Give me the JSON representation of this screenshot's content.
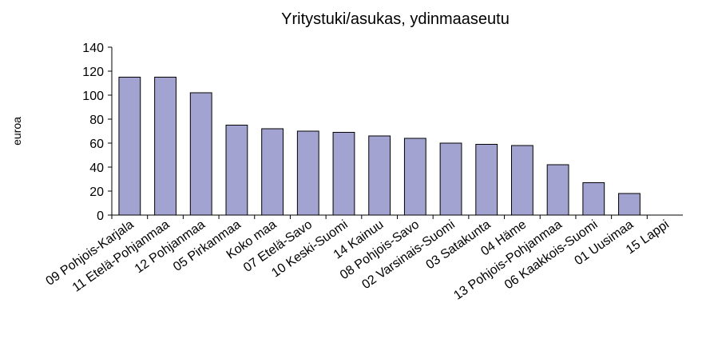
{
  "chart_data": {
    "type": "bar",
    "title": "Yritystuki/asukas, ydinmaaseutu",
    "y_label": "euroa",
    "categories": [
      "09 Pohjois-Karjala",
      "11 Etelä-Pohjanmaa",
      "12 Pohjanmaa",
      "05 Pirkanmaa",
      "Koko maa",
      "07 Etelä-Savo",
      "10 Keski-Suomi",
      "14 Kainuu",
      "08 Pohjois-Savo",
      "02 Varsinais-Suomi",
      "03 Satakunta",
      "04 Häme",
      "13 Pohjois-Pohjanmaa",
      "06 Kaakkois-Suomi",
      "01 Uusimaa",
      "15 Lappi"
    ],
    "values": [
      115,
      115,
      102,
      75,
      72,
      70,
      69,
      66,
      64,
      60,
      59,
      58,
      42,
      27,
      18,
      0
    ],
    "color": "#a3a3d1",
    "ylim": [
      0,
      140
    ],
    "yticks": [
      0,
      20,
      40,
      60,
      80,
      100,
      120,
      140
    ],
    "grid": false
  }
}
